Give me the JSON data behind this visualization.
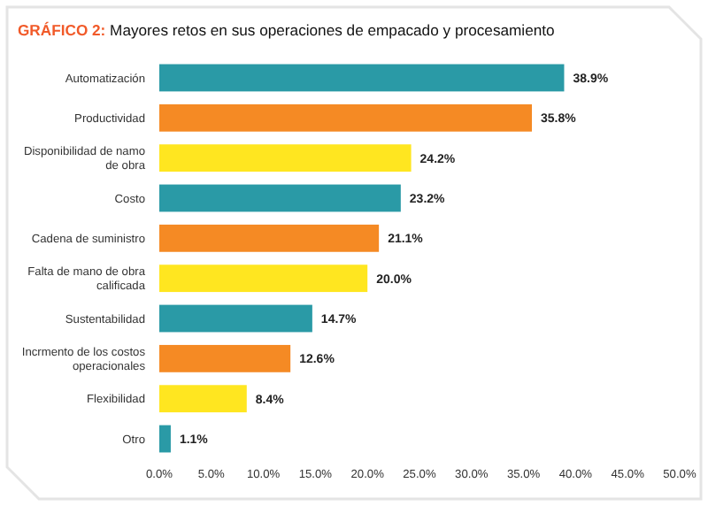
{
  "chart_data": {
    "type": "bar",
    "orientation": "horizontal",
    "title": "GRÁFICO 2: Mayores retos en sus operaciones de empacado y procesamiento",
    "categories": [
      "Automatización",
      "Productividad",
      "Disponibilidad de namo de obra",
      "Costo",
      "Cadena de suministro",
      "Falta de mano de obra calificada",
      "Sustentabilidad",
      "Incrmento de los costos operacionales",
      "Flexibilidad",
      "Otro"
    ],
    "values": [
      38.9,
      35.8,
      24.2,
      23.2,
      21.1,
      20.0,
      14.7,
      12.6,
      8.4,
      1.1
    ],
    "value_labels": [
      "38.9%",
      "35.8%",
      "24.2%",
      "23.2%",
      "21.1%",
      "20.0%",
      "14.7%",
      "12.6%",
      "8.4%",
      "1.1%"
    ],
    "colors": [
      "#2a9aa6",
      "#f58a24",
      "#ffe620",
      "#2a9aa6",
      "#f58a24",
      "#ffe620",
      "#2a9aa6",
      "#f58a24",
      "#ffe620",
      "#2a9aa6"
    ],
    "xlim": [
      0,
      50
    ],
    "xticks": [
      {
        "value": 0,
        "label": "0.0%"
      },
      {
        "value": 5,
        "label": "5.0%"
      },
      {
        "value": 10,
        "label": "10.0%"
      },
      {
        "value": 15,
        "label": "15.0%"
      },
      {
        "value": 20,
        "label": "20.0%"
      },
      {
        "value": 25,
        "label": "25.0%"
      },
      {
        "value": 30,
        "label": "30.0%"
      },
      {
        "value": 35,
        "label": "35.0%"
      },
      {
        "value": 40,
        "label": "40.0%"
      },
      {
        "value": 45,
        "label": "45.0%"
      },
      {
        "value": 50,
        "label": "50.0%"
      }
    ],
    "grid": false
  }
}
